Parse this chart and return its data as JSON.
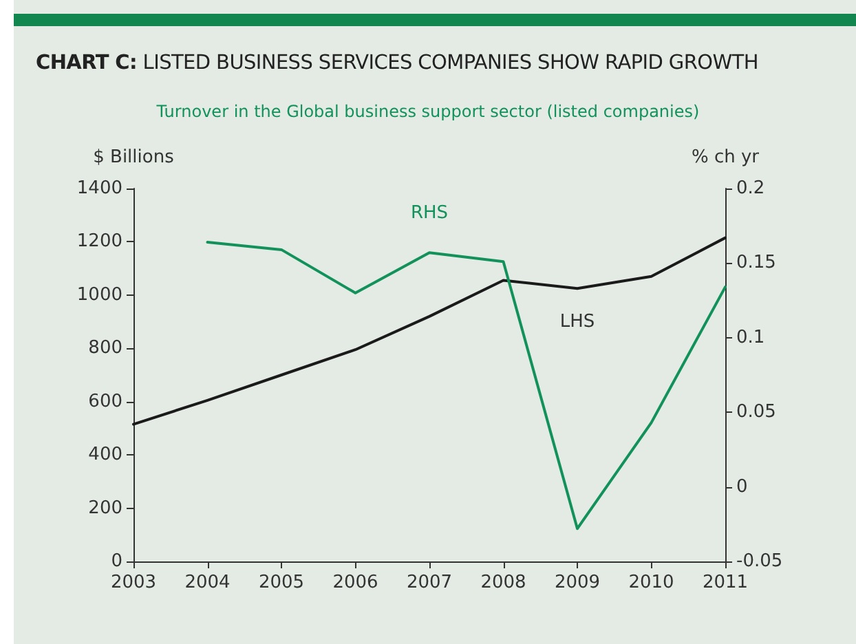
{
  "chart_data": {
    "type": "line",
    "title": "CHART C: LISTED BUSINESS SERVICES COMPANIES SHOW RAPID GROWTH",
    "subtitle": "Turnover in the Global business support sector (listed companies)",
    "ylabel": "$ Billions",
    "y2label": "% ch yr",
    "categories": [
      "2003",
      "2004",
      "2005",
      "2006",
      "2007",
      "2008",
      "2009",
      "2010",
      "2011"
    ],
    "series": [
      {
        "name": "LHS",
        "color": "#1a1a1a",
        "values": [
          515,
          605,
          700,
          795,
          920,
          1055,
          1025,
          1070,
          1215
        ]
      },
      {
        "name": "RHS",
        "color": "#12925a",
        "axis": "y2",
        "values": [
          null,
          0.164,
          0.159,
          0.13,
          0.157,
          0.151,
          -0.028,
          0.043,
          0.134
        ]
      }
    ],
    "ylim": [
      0,
      1400
    ],
    "yticks": [
      0,
      200,
      400,
      600,
      800,
      1000,
      1200,
      1400
    ],
    "y2lim": [
      -0.05,
      0.2
    ],
    "y2ticks": [
      -0.05,
      0,
      0.05,
      0.1,
      0.15,
      0.2
    ],
    "grid": false,
    "legend": false,
    "marker": "none",
    "line_style": "solid"
  }
}
